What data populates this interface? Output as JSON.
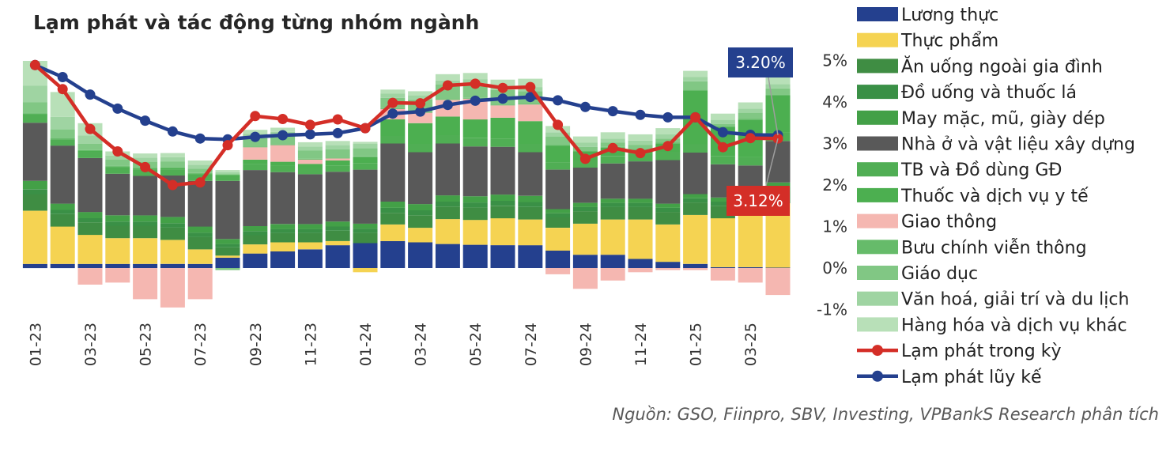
{
  "chart_data": {
    "type": "bar",
    "title": "Lạm phát và tác động từng nhóm ngành",
    "source": "Nguồn: GSO, Fiinpro, SBV, Investing, VPBankS Research phân tích",
    "xlabel": "",
    "ylabel": "",
    "ylim": [
      -1.0,
      5.0
    ],
    "y_ticks": [
      "5%",
      "4%",
      "3%",
      "2%",
      "1%",
      "0%",
      "-1%"
    ],
    "y_axis_side": "right",
    "grid": false,
    "legend_position": "right",
    "categories": [
      "01-23",
      "02-23",
      "03-23",
      "04-23",
      "05-23",
      "06-23",
      "07-23",
      "08-23",
      "09-23",
      "10-23",
      "11-23",
      "12-23",
      "01-24",
      "02-24",
      "03-24",
      "04-24",
      "05-24",
      "06-24",
      "07-24",
      "08-24",
      "09-24",
      "10-24",
      "11-24",
      "12-24",
      "01-25",
      "02-25",
      "03-25",
      "04-25"
    ],
    "x_tick_labels": [
      "01-23",
      "",
      "03-23",
      "",
      "05-23",
      "",
      "07-23",
      "",
      "09-23",
      "",
      "11-23",
      "",
      "01-24",
      "",
      "03-24",
      "",
      "05-24",
      "",
      "07-24",
      "",
      "09-24",
      "",
      "11-24",
      "",
      "01-25",
      "",
      "03-25",
      ""
    ],
    "series": [
      {
        "name": "Lương thực",
        "kind": "bar",
        "color": "#24408e",
        "values": [
          0.1,
          0.1,
          0.1,
          0.1,
          0.1,
          0.1,
          0.1,
          0.25,
          0.35,
          0.4,
          0.45,
          0.55,
          0.6,
          0.65,
          0.62,
          0.58,
          0.56,
          0.55,
          0.55,
          0.42,
          0.32,
          0.32,
          0.22,
          0.15,
          0.1,
          0.02,
          0.02,
          0.01
        ]
      },
      {
        "name": "Thực phẩm",
        "kind": "bar",
        "color": "#f5d352",
        "values": [
          1.28,
          0.9,
          0.7,
          0.62,
          0.62,
          0.58,
          0.35,
          0.05,
          0.22,
          0.22,
          0.17,
          0.1,
          -0.1,
          0.4,
          0.35,
          0.6,
          0.6,
          0.65,
          0.62,
          0.55,
          0.75,
          0.85,
          0.95,
          0.9,
          1.18,
          1.18,
          1.25,
          1.55
        ]
      },
      {
        "name": "Ăn uống ngoài gia đình",
        "kind": "bar",
        "color": "#3f8d43",
        "values": [
          0.4,
          0.3,
          0.3,
          0.3,
          0.3,
          0.3,
          0.3,
          0.2,
          0.22,
          0.22,
          0.22,
          0.25,
          0.25,
          0.28,
          0.3,
          0.3,
          0.3,
          0.3,
          0.3,
          0.25,
          0.3,
          0.3,
          0.3,
          0.3,
          0.3,
          0.3,
          0.3,
          0.3
        ]
      },
      {
        "name": "Đồ uống và thuốc lá",
        "kind": "bar",
        "color": "#3a9046",
        "values": [
          0.12,
          0.1,
          0.1,
          0.1,
          0.1,
          0.1,
          0.1,
          0.08,
          0.1,
          0.1,
          0.1,
          0.1,
          0.1,
          0.12,
          0.12,
          0.12,
          0.12,
          0.12,
          0.12,
          0.1,
          0.1,
          0.1,
          0.1,
          0.1,
          0.1,
          0.1,
          0.1,
          0.1
        ]
      },
      {
        "name": "May mặc, mũ, giày dép",
        "kind": "bar",
        "color": "#43a047",
        "values": [
          0.2,
          0.15,
          0.15,
          0.15,
          0.15,
          0.15,
          0.15,
          0.12,
          0.12,
          0.12,
          0.12,
          0.12,
          0.12,
          0.15,
          0.15,
          0.15,
          0.15,
          0.15,
          0.15,
          0.1,
          0.1,
          0.1,
          0.1,
          0.1,
          0.1,
          0.1,
          0.1,
          0.1
        ]
      },
      {
        "name": "Nhà ở và vật liệu xây dựng",
        "kind": "bar",
        "color": "#595959",
        "values": [
          1.4,
          1.4,
          1.3,
          1.0,
          0.95,
          1.0,
          1.1,
          1.4,
          1.35,
          1.25,
          1.2,
          1.2,
          1.3,
          1.4,
          1.25,
          1.25,
          1.2,
          1.15,
          1.05,
          0.95,
          0.85,
          0.85,
          0.9,
          1.05,
          1.0,
          0.8,
          0.7,
          1.0
        ]
      },
      {
        "name": "TB và Đồ dùng GĐ",
        "kind": "bar",
        "color": "#50ae54",
        "values": [
          0.2,
          0.15,
          0.15,
          0.15,
          0.15,
          0.15,
          0.15,
          0.12,
          0.15,
          0.15,
          0.15,
          0.15,
          0.15,
          0.18,
          0.2,
          0.2,
          0.2,
          0.2,
          0.2,
          0.18,
          0.18,
          0.18,
          0.18,
          0.2,
          0.2,
          0.2,
          0.2,
          0.2
        ]
      },
      {
        "name": "Thuốc và dịch vụ y tế",
        "kind": "bar",
        "color": "#4caf50",
        "values": [
          0.02,
          0.02,
          0.02,
          0.02,
          0.02,
          0.02,
          0.02,
          0.02,
          0.1,
          0.1,
          0.1,
          0.12,
          0.15,
          0.4,
          0.5,
          0.45,
          0.45,
          0.5,
          0.55,
          0.4,
          0.2,
          0.2,
          0.1,
          0.2,
          1.3,
          0.7,
          0.9,
          0.9
        ]
      },
      {
        "name": "Giao thông",
        "kind": "bar",
        "color": "#f5b7b1",
        "values": [
          0.0,
          0.0,
          -0.4,
          -0.35,
          -0.75,
          -0.95,
          -0.75,
          0.0,
          0.3,
          0.4,
          0.1,
          0.05,
          0.0,
          0.25,
          0.25,
          0.4,
          0.5,
          0.3,
          0.4,
          -0.15,
          -0.5,
          -0.3,
          -0.1,
          -0.05,
          -0.05,
          -0.3,
          -0.35,
          -0.65
        ]
      },
      {
        "name": "Bưu chính viễn thông",
        "kind": "bar",
        "color": "#66bb6a",
        "values": [
          0.02,
          0.02,
          0.02,
          0.02,
          0.02,
          0.02,
          0.02,
          0.02,
          0.02,
          0.02,
          0.02,
          0.02,
          0.02,
          0.02,
          0.02,
          0.02,
          0.02,
          0.02,
          0.02,
          0.02,
          0.02,
          0.02,
          0.02,
          0.02,
          0.02,
          0.02,
          0.02,
          0.02
        ]
      },
      {
        "name": "Giáo dục",
        "kind": "bar",
        "color": "#81c784",
        "values": [
          0.25,
          0.2,
          0.15,
          0.15,
          0.15,
          0.15,
          0.1,
          -0.05,
          0.2,
          0.2,
          0.2,
          0.2,
          0.2,
          0.25,
          0.3,
          0.35,
          0.35,
          0.35,
          0.3,
          0.2,
          0.1,
          0.1,
          0.1,
          0.1,
          0.2,
          0.05,
          0.15,
          0.15
        ]
      },
      {
        "name": "Văn hoá, giải trí và du lịch",
        "kind": "bar",
        "color": "#9fd4a2",
        "values": [
          0.4,
          0.3,
          0.2,
          0.1,
          0.1,
          0.1,
          0.1,
          0.05,
          0.1,
          0.1,
          0.1,
          0.1,
          0.1,
          0.1,
          0.1,
          0.1,
          0.1,
          0.1,
          0.1,
          0.1,
          0.1,
          0.1,
          0.1,
          0.1,
          0.1,
          0.1,
          0.1,
          0.1
        ]
      },
      {
        "name": "Hàng hóa và dịch vụ khác",
        "kind": "bar",
        "color": "#b8e0b8",
        "values": [
          0.6,
          0.6,
          0.3,
          0.1,
          0.1,
          0.1,
          0.1,
          0.05,
          0.1,
          0.1,
          0.1,
          0.1,
          0.05,
          0.1,
          0.1,
          0.15,
          0.15,
          0.15,
          0.2,
          0.15,
          0.15,
          0.15,
          0.15,
          0.15,
          0.15,
          0.15,
          0.15,
          0.25
        ]
      },
      {
        "name": "Lạm phát trong kỳ",
        "kind": "line",
        "color": "#d42e27",
        "values": [
          4.89,
          4.31,
          3.35,
          2.81,
          2.43,
          2.0,
          2.06,
          2.96,
          3.66,
          3.59,
          3.45,
          3.58,
          3.37,
          3.98,
          3.97,
          4.4,
          4.44,
          4.34,
          4.36,
          3.45,
          2.63,
          2.89,
          2.77,
          2.94,
          3.63,
          2.91,
          3.13,
          3.12
        ]
      },
      {
        "name": "Lạm phát lũy kế",
        "kind": "line",
        "color": "#24408e",
        "values": [
          4.89,
          4.6,
          4.18,
          3.84,
          3.55,
          3.29,
          3.12,
          3.1,
          3.16,
          3.2,
          3.22,
          3.25,
          3.37,
          3.72,
          3.77,
          3.93,
          4.03,
          4.08,
          4.12,
          4.04,
          3.88,
          3.78,
          3.69,
          3.63,
          3.63,
          3.27,
          3.21,
          3.2
        ]
      }
    ],
    "annotations": [
      {
        "text": "3.20%",
        "refers_to": "Lạm phát lũy kế",
        "category": "04-25",
        "value": 3.2,
        "color": "#24408e"
      },
      {
        "text": "3.12%",
        "refers_to": "Lạm phát trong kỳ",
        "category": "04-25",
        "value": 3.12,
        "color": "#d42e27"
      }
    ]
  }
}
